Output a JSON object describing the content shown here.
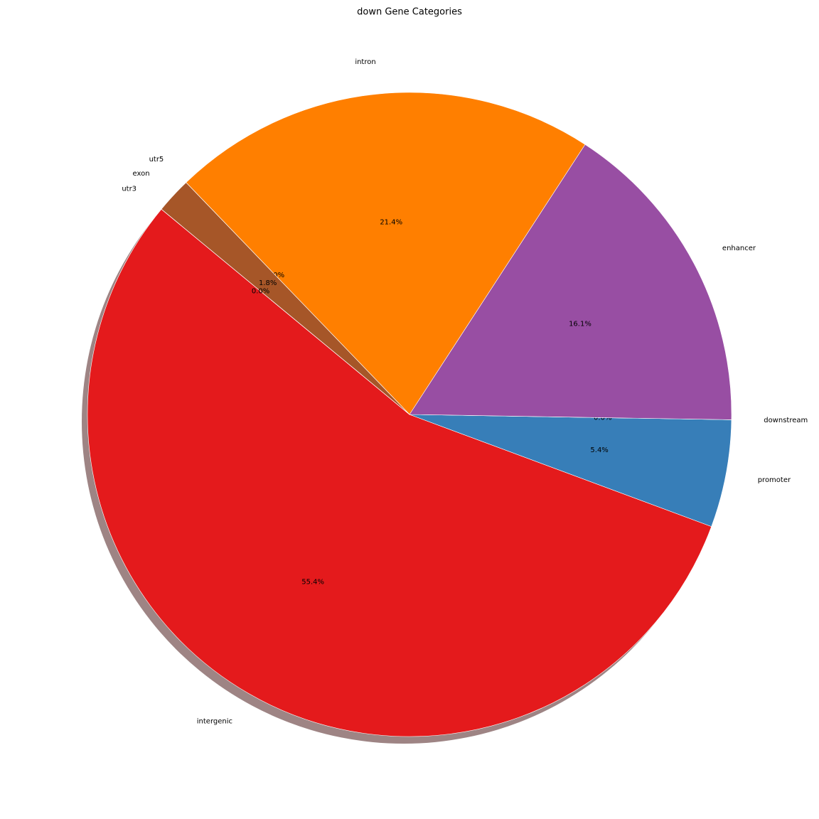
{
  "chart_data": {
    "type": "pie",
    "title": "down Gene Categories",
    "categories": [
      "intergenic",
      "promoter",
      "downstream",
      "enhancer",
      "intron",
      "utr5",
      "exon",
      "utr3"
    ],
    "values": [
      55.4,
      5.4,
      0.0,
      16.1,
      21.4,
      0.0,
      1.8,
      0.0
    ],
    "value_labels": [
      "55.4%",
      "5.4%",
      "0.0%",
      "16.1%",
      "21.4%",
      "0.0%",
      "1.8%",
      "0.0%"
    ],
    "colors": [
      "#e41a1c",
      "#377eb8",
      "#4daf4a",
      "#984ea3",
      "#ff7f00",
      "#ffff33",
      "#a65628",
      "#f781bf"
    ],
    "shadow": true
  }
}
